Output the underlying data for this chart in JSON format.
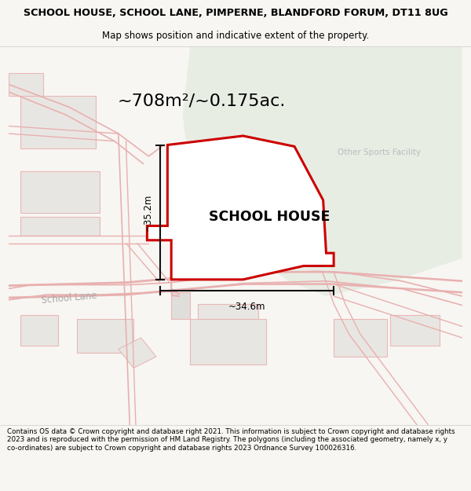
{
  "title_line1": "SCHOOL HOUSE, SCHOOL LANE, PIMPERNE, BLANDFORD FORUM, DT11 8UG",
  "title_line2": "Map shows position and indicative extent of the property.",
  "area_label": "~708m²/~0.175ac.",
  "property_label": "SCHOOL HOUSE",
  "sports_label": "Other Sports Facility",
  "road_label": "School Lane",
  "dim_vertical": "~35.2m",
  "dim_horizontal": "~34.6m",
  "footer_text": "Contains OS data © Crown copyright and database right 2021. This information is subject to Crown copyright and database rights 2023 and is reproduced with the permission of HM Land Registry. The polygons (including the associated geometry, namely x, y co-ordinates) are subject to Crown copyright and database rights 2023 Ordnance Survey 100026316.",
  "bg_color": "#f7f6f2",
  "map_bg": "#f7f6f2",
  "green_area_color": "#e8ede4",
  "property_fill": "#ffffff",
  "property_outline": "#cc0000",
  "dim_line_color": "#111111",
  "building_fill": "#e8e6e2",
  "building_edge": "#e8b8b8",
  "road_line_color": "#e8b0b0",
  "title_area_bg": "#ffffff",
  "footer_bg": "#ffffff",
  "road_area_fill": "#ede8e8"
}
